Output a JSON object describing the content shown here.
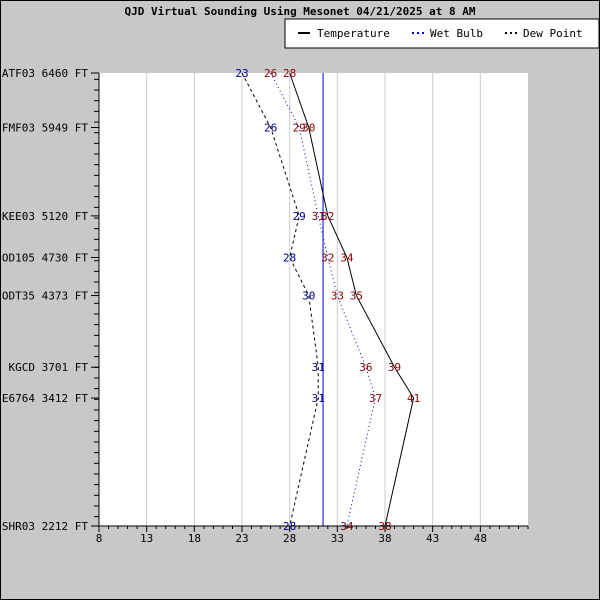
{
  "chart_data": {
    "type": "line",
    "title": "QJD Virtual Sounding Using Mesonet 04/21/2025 at 8 AM",
    "legend": {
      "placement": "top-right",
      "entries": [
        {
          "label": "Temperature",
          "style": "solid",
          "color": "#000000"
        },
        {
          "label": "Wet Bulb",
          "style": "dotted",
          "color": "#0000cc"
        },
        {
          "label": "Dew Point",
          "style": "dashed",
          "color": "#000000"
        }
      ]
    },
    "xlim": [
      8,
      53
    ],
    "xticks": [
      8,
      13,
      18,
      23,
      28,
      33,
      38,
      43,
      48
    ],
    "ylim": [
      2212,
      6460
    ],
    "y_minor_step": 100,
    "freezing_line": 31.5,
    "grid": "vertical",
    "stations": [
      {
        "label": "ATF03 6460 FT",
        "elev": 6460,
        "temp": 28,
        "wetbulb": 26,
        "dewpoint": 23
      },
      {
        "label": "FMF03 5949 FT",
        "elev": 5949,
        "temp": 30,
        "wetbulb": 29,
        "dewpoint": 26
      },
      {
        "label": "KEE03 5120 FT",
        "elev": 5120,
        "temp": 32,
        "wetbulb": 31,
        "dewpoint": 29
      },
      {
        "label": "OD105 4730 FT",
        "elev": 4730,
        "temp": 34,
        "wetbulb": 32,
        "dewpoint": 28
      },
      {
        "label": "ODT35 4373 FT",
        "elev": 4373,
        "temp": 35,
        "wetbulb": 33,
        "dewpoint": 30
      },
      {
        "label": "KGCD 3701 FT",
        "elev": 3701,
        "temp": 39,
        "wetbulb": 36,
        "dewpoint": 31
      },
      {
        "label": "E6764 3412 FT",
        "elev": 3412,
        "temp": 41,
        "wetbulb": 37,
        "dewpoint": 31
      },
      {
        "label": "SHR03 2212 FT",
        "elev": 2212,
        "temp": 38,
        "wetbulb": 34,
        "dewpoint": 28
      }
    ],
    "colors": {
      "temp_label": "#880000",
      "dewpoint_label": "#000088",
      "freezing": "#0000cc",
      "grid": "#cccccc"
    }
  }
}
